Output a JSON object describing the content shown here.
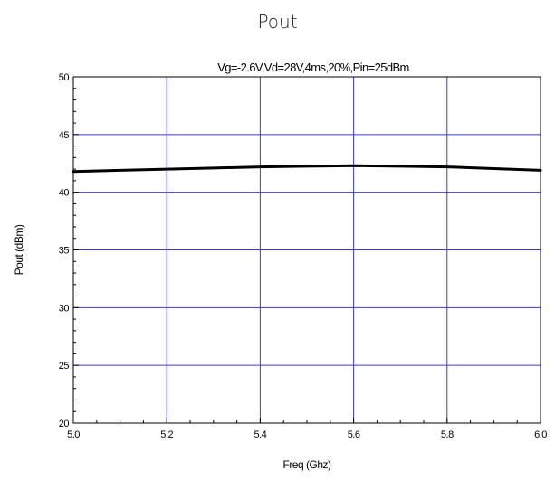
{
  "page_title": "Pout",
  "chart_data": {
    "type": "line",
    "title": "Pout",
    "subtitle": "Vg=-2.6V,Vd=28V,4ms,20%,Pin=25dBm",
    "xlabel": "Freq (Ghz)",
    "ylabel": "Pout (dBm)",
    "xlim": [
      5.0,
      6.0
    ],
    "ylim": [
      20,
      50
    ],
    "xticks": [
      5.0,
      5.2,
      5.4,
      5.6,
      5.8,
      6.0
    ],
    "xtick_labels": [
      "5.0",
      "5.2",
      "5.4",
      "5.6",
      "5.8",
      "6.0"
    ],
    "yticks": [
      20,
      25,
      30,
      35,
      40,
      45,
      50
    ],
    "ytick_labels": [
      "20",
      "25",
      "30",
      "35",
      "40",
      "45",
      "50"
    ],
    "grid": true,
    "legend": "none",
    "x": [
      5.0,
      5.1,
      5.2,
      5.3,
      5.4,
      5.5,
      5.6,
      5.7,
      5.8,
      5.9,
      6.0
    ],
    "y": [
      41.8,
      41.9,
      42.0,
      42.1,
      42.2,
      42.25,
      42.3,
      42.25,
      42.2,
      42.05,
      41.9
    ],
    "colors": {
      "grid": "#3a3ad8",
      "line": "#000000",
      "frame": "#000000"
    }
  }
}
